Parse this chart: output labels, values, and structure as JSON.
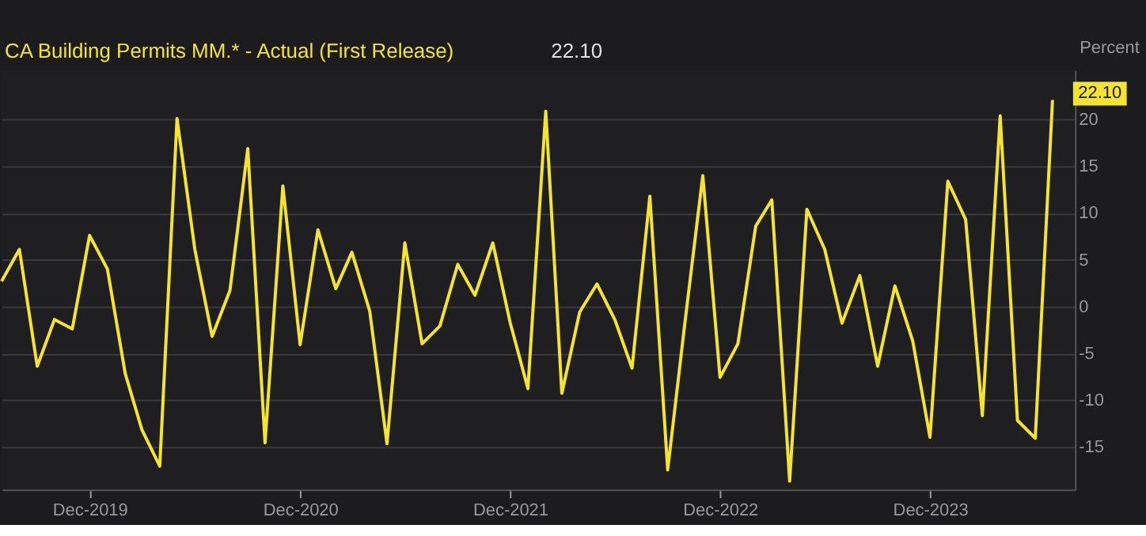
{
  "chart_data": {
    "type": "line",
    "title": "CA Building Permits MM.* - Actual (First Release)",
    "ylabel": "Percent",
    "annotations": [
      "22.10"
    ],
    "x": [
      "2019-07",
      "2019-08",
      "2019-09",
      "2019-10",
      "2019-11",
      "2019-12",
      "2020-01",
      "2020-02",
      "2020-03",
      "2020-04",
      "2020-05",
      "2020-06",
      "2020-07",
      "2020-08",
      "2020-09",
      "2020-10",
      "2020-11",
      "2020-12",
      "2021-01",
      "2021-02",
      "2021-03",
      "2021-04",
      "2021-05",
      "2021-06",
      "2021-07",
      "2021-08",
      "2021-09",
      "2021-10",
      "2021-11",
      "2021-12",
      "2022-01",
      "2022-02",
      "2022-03",
      "2022-04",
      "2022-05",
      "2022-06",
      "2022-07",
      "2022-08",
      "2022-09",
      "2022-10",
      "2022-11",
      "2022-12",
      "2023-01",
      "2023-02",
      "2023-03",
      "2023-04",
      "2023-05",
      "2023-06",
      "2023-07",
      "2023-08",
      "2023-09",
      "2023-10",
      "2023-11",
      "2023-12",
      "2024-01",
      "2024-02",
      "2024-03",
      "2024-04",
      "2024-05",
      "2024-06",
      "2024-07"
    ],
    "series": [
      {
        "color": "#f5e331",
        "values": [
          2.7,
          6.1,
          -6.4,
          -1.4,
          -2.4,
          7.6,
          4.0,
          -7.2,
          -13.2,
          -17.1,
          20.1,
          6.1,
          -3.2,
          1.7,
          16.9,
          -14.6,
          12.9,
          -4.1,
          8.2,
          1.9,
          5.8,
          -0.5,
          -14.7,
          6.8,
          -4.0,
          -2.1,
          4.5,
          1.2,
          6.8,
          -1.7,
          -8.8,
          20.9,
          -9.3,
          -0.6,
          2.4,
          -1.4,
          -6.6,
          11.8,
          -17.5,
          -1.7,
          14.0,
          -7.6,
          -4.0,
          8.6,
          11.4,
          -18.7,
          10.4,
          6.1,
          -1.8,
          3.3,
          -6.4,
          2.2,
          -3.7,
          -14.0,
          13.4,
          9.3,
          -11.7,
          20.4,
          -12.2,
          -14.1,
          22.1
        ],
        "value_labels": [
          null,
          null,
          null,
          null,
          null,
          null,
          null,
          null,
          null,
          null,
          null,
          null,
          null,
          null,
          null,
          null,
          null,
          null,
          null,
          null,
          null,
          null,
          null,
          null,
          null,
          null,
          null,
          null,
          null,
          null,
          null,
          null,
          null,
          null,
          null,
          null,
          null,
          null,
          null,
          null,
          null,
          null,
          null,
          null,
          null,
          null,
          null,
          null,
          null,
          null,
          null,
          null,
          null,
          null,
          null,
          null,
          null,
          null,
          null,
          null,
          "22.10"
        ]
      }
    ],
    "xlim": [
      "2019-07-01",
      "2024-08-09"
    ],
    "xticks": [
      {
        "value": "2019-12",
        "label": "Dec-2019"
      },
      {
        "value": "2020-12",
        "label": "Dec-2020"
      },
      {
        "value": "2021-12",
        "label": "Dec-2021"
      },
      {
        "value": "2022-12",
        "label": "Dec-2022"
      },
      {
        "value": "2023-12",
        "label": "Dec-2023"
      }
    ],
    "ylim": [
      -19.6,
      25.3
    ],
    "yticks": [
      -15,
      -10,
      -5,
      0,
      5,
      10,
      15,
      20
    ],
    "grid": "y",
    "marker": "none",
    "line_style": "solid"
  }
}
